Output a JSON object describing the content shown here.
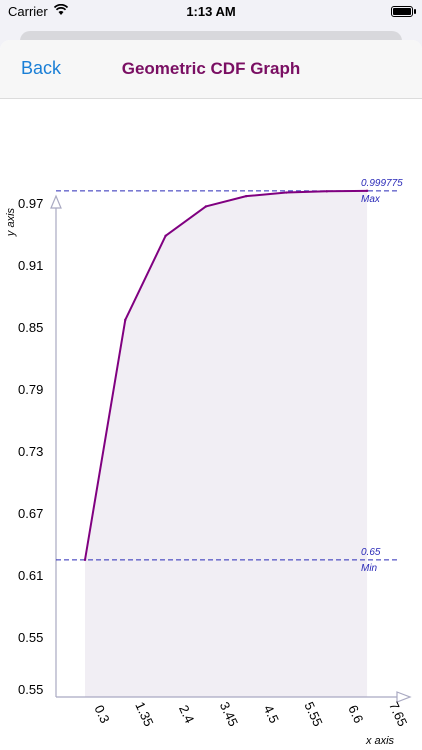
{
  "status_bar": {
    "carrier": "Carrier",
    "time": "1:13 AM",
    "wifi_icon": "wifi-icon",
    "battery_icon": "battery-full-icon"
  },
  "nav": {
    "back_label": "Back",
    "title": "Geometric CDF Graph"
  },
  "colors": {
    "nav_title": "#7a0f63",
    "back_link": "#1a7fd6",
    "series_line": "#800080",
    "fill_area": "#f1eef4",
    "reference_line": "#2b2bb8",
    "axis": "#a9a9c2"
  },
  "chart_data": {
    "type": "line",
    "title": "",
    "xlabel": "x axis",
    "ylabel": "y axis",
    "x_ticks": [
      "0.3",
      "1.35",
      "2.4",
      "3.45",
      "4.5",
      "5.55",
      "6.6",
      "7.65"
    ],
    "y_ticks": [
      "0.55",
      "0.55",
      "0.61",
      "0.67",
      "0.73",
      "0.79",
      "0.85",
      "0.91",
      "0.97"
    ],
    "xlim": [
      0,
      8.4
    ],
    "ylim": [
      0.52,
      0.993
    ],
    "x": [
      0,
      1,
      2,
      3,
      4,
      5,
      6,
      7
    ],
    "values": [
      0.65,
      0.8775,
      0.957125,
      0.98499,
      0.99475,
      0.99816,
      0.99936,
      0.999775
    ],
    "fill_under": true,
    "reference_lines": [
      {
        "label": "Max",
        "value_label": "0.999775",
        "value": 0.999775
      },
      {
        "label": "Min",
        "value_label": "0.65",
        "value": 0.65
      }
    ],
    "grid": false
  }
}
